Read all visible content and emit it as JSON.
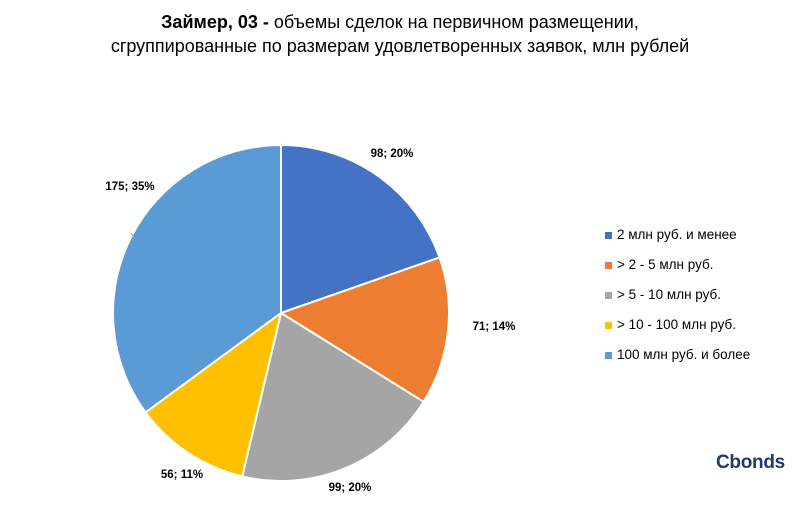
{
  "title": {
    "bold": "Займер, 03 -",
    "line1_rest": " объемы сделок на первичном размещении,",
    "line2": "сгруппированные по размерам удовлетворенных заявок, млн рублей"
  },
  "logo_text": "Cbonds",
  "chart_data": {
    "type": "pie",
    "title": "Займер, 03 - объемы сделок на первичном размещении, сгруппированные по размерам удовлетворенных заявок, млн рублей",
    "legend_position": "right",
    "slices": [
      {
        "label": "2 млн руб. и менее",
        "value": 98,
        "percent": 20,
        "data_label": "98; 20%",
        "color": "#4472C4"
      },
      {
        "label": "> 2 - 5 млн руб.",
        "value": 71,
        "percent": 14,
        "data_label": "71; 14%",
        "color": "#ED7D31"
      },
      {
        "label": "> 5 - 10 млн руб.",
        "value": 99,
        "percent": 20,
        "data_label": "99; 20%",
        "color": "#A5A5A5"
      },
      {
        "label": "> 10 - 100 млн руб.",
        "value": 56,
        "percent": 11,
        "data_label": "56; 11%",
        "color": "#FFC000"
      },
      {
        "label": "100 млн руб. и более",
        "value": 175,
        "percent": 35,
        "data_label": "175; 35%",
        "color": "#5B9BD5"
      }
    ]
  }
}
